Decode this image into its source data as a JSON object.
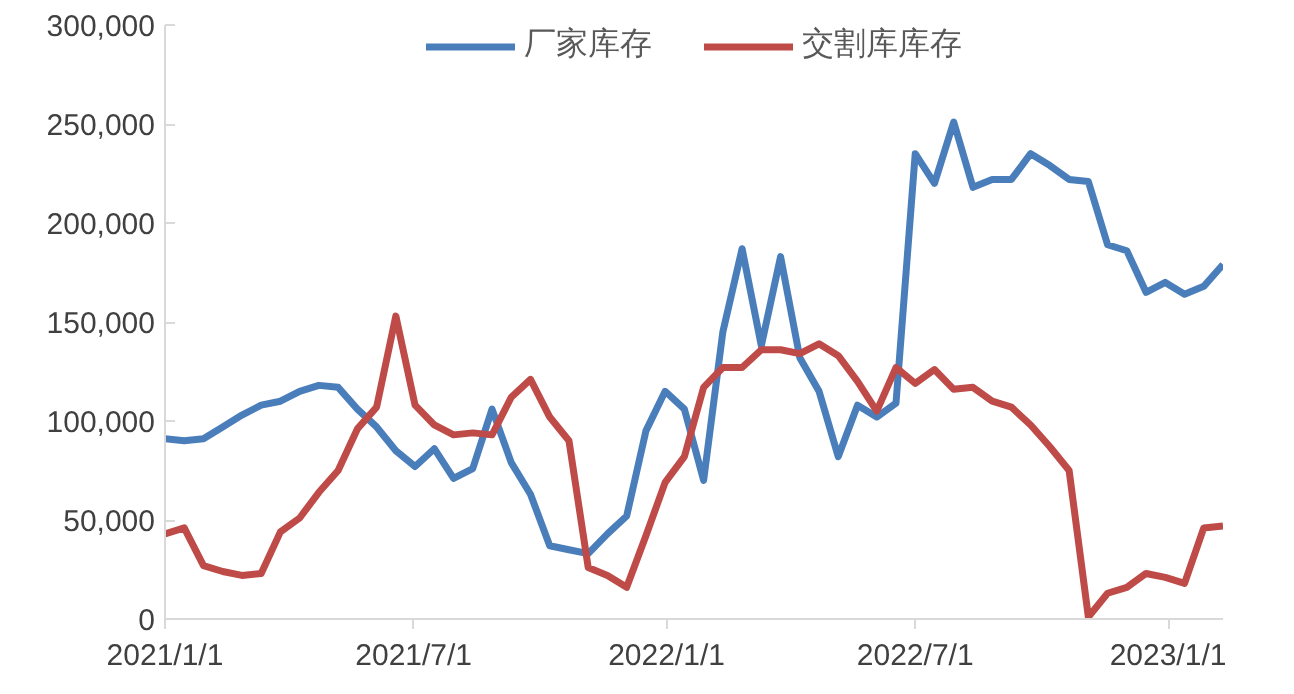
{
  "chart_data": {
    "type": "line",
    "x": [
      "2021-01-01",
      "2021-01-15",
      "2021-01-29",
      "2021-02-12",
      "2021-02-26",
      "2021-03-12",
      "2021-03-26",
      "2021-04-09",
      "2021-04-23",
      "2021-05-07",
      "2021-05-21",
      "2021-06-04",
      "2021-06-18",
      "2021-07-02",
      "2021-07-16",
      "2021-07-30",
      "2021-08-13",
      "2021-08-27",
      "2021-09-10",
      "2021-09-24",
      "2021-10-08",
      "2021-10-22",
      "2021-11-05",
      "2021-11-19",
      "2021-12-03",
      "2021-12-17",
      "2021-12-31",
      "2022-01-14",
      "2022-01-28",
      "2022-02-11",
      "2022-02-25",
      "2022-03-11",
      "2022-03-25",
      "2022-04-08",
      "2022-04-22",
      "2022-05-06",
      "2022-05-20",
      "2022-06-03",
      "2022-06-17",
      "2022-07-01",
      "2022-07-15",
      "2022-07-29",
      "2022-08-12",
      "2022-08-26",
      "2022-09-09",
      "2022-09-23",
      "2022-10-07",
      "2022-10-21",
      "2022-11-04",
      "2022-11-18",
      "2022-12-02",
      "2022-12-16",
      "2022-12-30",
      "2023-01-13",
      "2023-01-27",
      "2023-02-10"
    ],
    "series": [
      {
        "name": "厂家库存",
        "color": "#4a7ebb",
        "values": [
          91000,
          90000,
          91000,
          97000,
          103000,
          108000,
          110000,
          115000,
          118000,
          117000,
          106000,
          97000,
          85000,
          77000,
          86000,
          71000,
          76000,
          106000,
          79000,
          63000,
          37000,
          35000,
          33000,
          43000,
          52000,
          95000,
          115000,
          106000,
          70000,
          145000,
          187000,
          138000,
          183000,
          132000,
          115000,
          82000,
          108000,
          102000,
          109000,
          235000,
          220000,
          251000,
          218000,
          222000,
          222000,
          235000,
          229000,
          222000,
          221000,
          189000,
          186000,
          165000,
          170000,
          164000,
          168000,
          179000
        ]
      },
      {
        "name": "交割库库存",
        "color": "#be4b48",
        "values": [
          43000,
          46000,
          27000,
          24000,
          22000,
          23000,
          44000,
          51000,
          64000,
          75000,
          96000,
          107000,
          153000,
          108000,
          98000,
          93000,
          94000,
          93000,
          112000,
          121000,
          102000,
          90000,
          26000,
          22000,
          16000,
          42000,
          69000,
          82000,
          117000,
          127000,
          127000,
          136000,
          136000,
          134000,
          139000,
          133000,
          120000,
          105000,
          127000,
          119000,
          126000,
          116000,
          117000,
          110000,
          107000,
          98000,
          87000,
          75000,
          1000,
          13000,
          16000,
          23000,
          21000,
          18000,
          46000,
          47000
        ]
      }
    ],
    "xlim": [
      "2021-01-01",
      "2023-02-10"
    ],
    "xticks": [
      {
        "value": "2021-01-01",
        "label": "2021/1/1"
      },
      {
        "value": "2021-07-01",
        "label": "2021/7/1"
      },
      {
        "value": "2022-01-01",
        "label": "2022/1/1"
      },
      {
        "value": "2022-07-01",
        "label": "2022/7/1"
      },
      {
        "value": "2023-01-01",
        "label": "2023/1/1"
      }
    ],
    "ylim": [
      0,
      300000
    ],
    "yticks": [
      {
        "value": 0,
        "label": "0"
      },
      {
        "value": 50000,
        "label": "50,000"
      },
      {
        "value": 100000,
        "label": "100,000"
      },
      {
        "value": 150000,
        "label": "150,000"
      },
      {
        "value": 200000,
        "label": "200,000"
      },
      {
        "value": 250000,
        "label": "250,000"
      },
      {
        "value": 300000,
        "label": "300,000"
      }
    ],
    "grid": false,
    "legend": "top",
    "marker": "none",
    "line_style": "solid"
  }
}
